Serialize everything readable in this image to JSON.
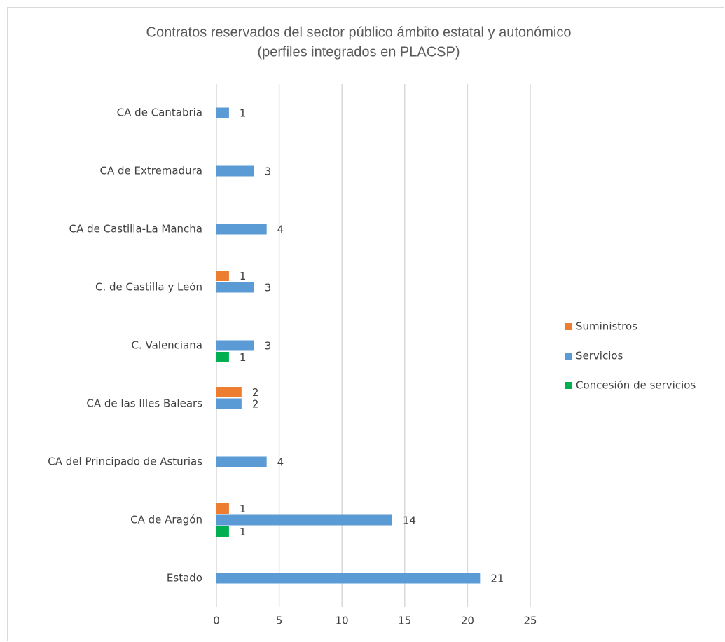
{
  "chart_data": {
    "type": "hbar",
    "title": [
      "Contratos reservados del sector público ámbito estatal y autonómico",
      "(perfiles integrados en PLACSP)"
    ],
    "categories": [
      "CA de Cantabria",
      "CA de Extremadura",
      "CA de Castilla-La Mancha",
      "C. de Castilla y León",
      "C. Valenciana",
      "CA de las Illes Balears",
      "CA del Principado de Asturias",
      "CA de Aragón",
      "Estado"
    ],
    "series": [
      {
        "name": "Suministros",
        "color": "#ED7D31",
        "values": [
          null,
          null,
          null,
          1,
          null,
          2,
          null,
          1,
          null
        ]
      },
      {
        "name": "Servicios",
        "color": "#5B9BD5",
        "values": [
          1,
          3,
          4,
          3,
          3,
          2,
          4,
          14,
          21
        ]
      },
      {
        "name": "Concesión de servicios",
        "color": "#00B050",
        "values": [
          null,
          null,
          null,
          null,
          1,
          null,
          null,
          1,
          null
        ]
      }
    ],
    "xlim": [
      0,
      25
    ],
    "xticks": [
      0,
      5,
      10,
      15,
      20,
      25
    ],
    "grid": true,
    "legend": "right"
  }
}
